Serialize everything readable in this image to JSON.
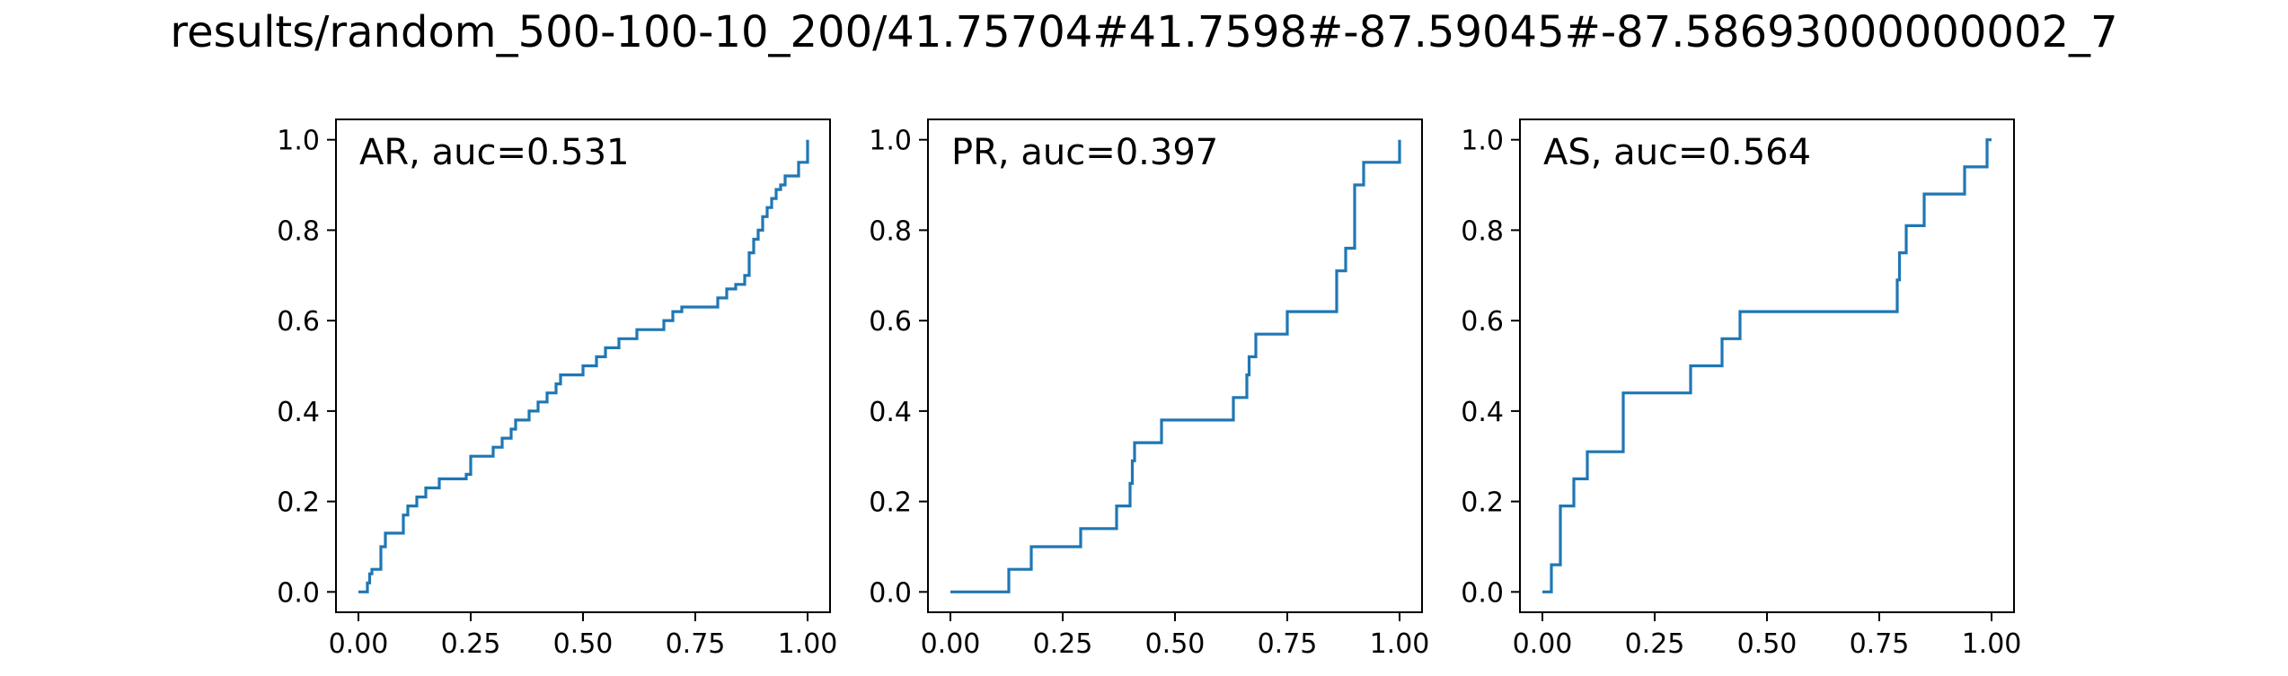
{
  "figure": {
    "title": "results/random_500-100-10_200/41.75704#41.7598#-87.59045#-87.58693000000002_7"
  },
  "colors": {
    "line": "#1f77b4",
    "axes": "#000000",
    "background": "#ffffff"
  },
  "chart_data": [
    {
      "type": "line",
      "drawstyle": "steps-post",
      "annotation": "AR, auc=0.531",
      "annotation_position": "top-left",
      "xlabel": "",
      "ylabel": "",
      "xlim": [
        -0.05,
        1.05
      ],
      "ylim": [
        -0.045,
        1.045
      ],
      "xticks": [
        0.0,
        0.25,
        0.5,
        0.75,
        1.0
      ],
      "xtick_labels": [
        "0.00",
        "0.25",
        "0.50",
        "0.75",
        "1.00"
      ],
      "yticks": [
        0.0,
        0.2,
        0.4,
        0.6,
        0.8,
        1.0
      ],
      "ytick_labels": [
        "0.0",
        "0.2",
        "0.4",
        "0.6",
        "0.8",
        "1.0"
      ],
      "grid": false,
      "series": [
        {
          "x": [
            0.0,
            0.02,
            0.025,
            0.03,
            0.04,
            0.05,
            0.06,
            0.08,
            0.1,
            0.11,
            0.12,
            0.13,
            0.15,
            0.17,
            0.18,
            0.24,
            0.25,
            0.27,
            0.28,
            0.3,
            0.32,
            0.34,
            0.35,
            0.38,
            0.4,
            0.42,
            0.44,
            0.45,
            0.48,
            0.5,
            0.53,
            0.55,
            0.58,
            0.62,
            0.68,
            0.7,
            0.72,
            0.75,
            0.78,
            0.8,
            0.82,
            0.84,
            0.85,
            0.86,
            0.87,
            0.88,
            0.89,
            0.9,
            0.91,
            0.92,
            0.93,
            0.94,
            0.95,
            0.98,
            1.0
          ],
          "y": [
            0.0,
            0.02,
            0.04,
            0.05,
            0.05,
            0.1,
            0.13,
            0.13,
            0.17,
            0.19,
            0.19,
            0.21,
            0.23,
            0.23,
            0.25,
            0.26,
            0.3,
            0.3,
            0.3,
            0.32,
            0.34,
            0.36,
            0.38,
            0.4,
            0.42,
            0.44,
            0.46,
            0.48,
            0.48,
            0.5,
            0.52,
            0.54,
            0.56,
            0.58,
            0.6,
            0.62,
            0.63,
            0.63,
            0.63,
            0.65,
            0.67,
            0.68,
            0.68,
            0.7,
            0.75,
            0.78,
            0.8,
            0.83,
            0.85,
            0.87,
            0.89,
            0.9,
            0.92,
            0.95,
            1.0
          ]
        }
      ]
    },
    {
      "type": "line",
      "drawstyle": "steps-post",
      "annotation": "PR, auc=0.397",
      "annotation_position": "top-left",
      "xlabel": "",
      "ylabel": "",
      "xlim": [
        -0.05,
        1.05
      ],
      "ylim": [
        -0.045,
        1.045
      ],
      "xticks": [
        0.0,
        0.25,
        0.5,
        0.75,
        1.0
      ],
      "xtick_labels": [
        "0.00",
        "0.25",
        "0.50",
        "0.75",
        "1.00"
      ],
      "yticks": [
        0.0,
        0.2,
        0.4,
        0.6,
        0.8,
        1.0
      ],
      "ytick_labels": [
        "0.0",
        "0.2",
        "0.4",
        "0.6",
        "0.8",
        "1.0"
      ],
      "grid": false,
      "series": [
        {
          "x": [
            0.0,
            0.13,
            0.18,
            0.29,
            0.37,
            0.4,
            0.405,
            0.41,
            0.47,
            0.63,
            0.66,
            0.665,
            0.68,
            0.75,
            0.86,
            0.88,
            0.9,
            0.92,
            1.0
          ],
          "y": [
            0.0,
            0.05,
            0.1,
            0.14,
            0.19,
            0.24,
            0.29,
            0.33,
            0.38,
            0.43,
            0.48,
            0.52,
            0.57,
            0.62,
            0.71,
            0.76,
            0.9,
            0.95,
            1.0
          ]
        }
      ]
    },
    {
      "type": "line",
      "drawstyle": "steps-post",
      "annotation": "AS, auc=0.564",
      "annotation_position": "top-left",
      "xlabel": "",
      "ylabel": "",
      "xlim": [
        -0.05,
        1.05
      ],
      "ylim": [
        -0.045,
        1.045
      ],
      "xticks": [
        0.0,
        0.25,
        0.5,
        0.75,
        1.0
      ],
      "xtick_labels": [
        "0.00",
        "0.25",
        "0.50",
        "0.75",
        "1.00"
      ],
      "yticks": [
        0.0,
        0.2,
        0.4,
        0.6,
        0.8,
        1.0
      ],
      "ytick_labels": [
        "0.0",
        "0.2",
        "0.4",
        "0.6",
        "0.8",
        "1.0"
      ],
      "grid": false,
      "series": [
        {
          "x": [
            0.0,
            0.02,
            0.04,
            0.07,
            0.1,
            0.18,
            0.33,
            0.4,
            0.44,
            0.79,
            0.795,
            0.81,
            0.85,
            0.94,
            0.99,
            1.0
          ],
          "y": [
            0.0,
            0.06,
            0.19,
            0.25,
            0.31,
            0.44,
            0.5,
            0.56,
            0.62,
            0.69,
            0.75,
            0.81,
            0.88,
            0.94,
            1.0,
            1.0
          ]
        }
      ]
    }
  ]
}
